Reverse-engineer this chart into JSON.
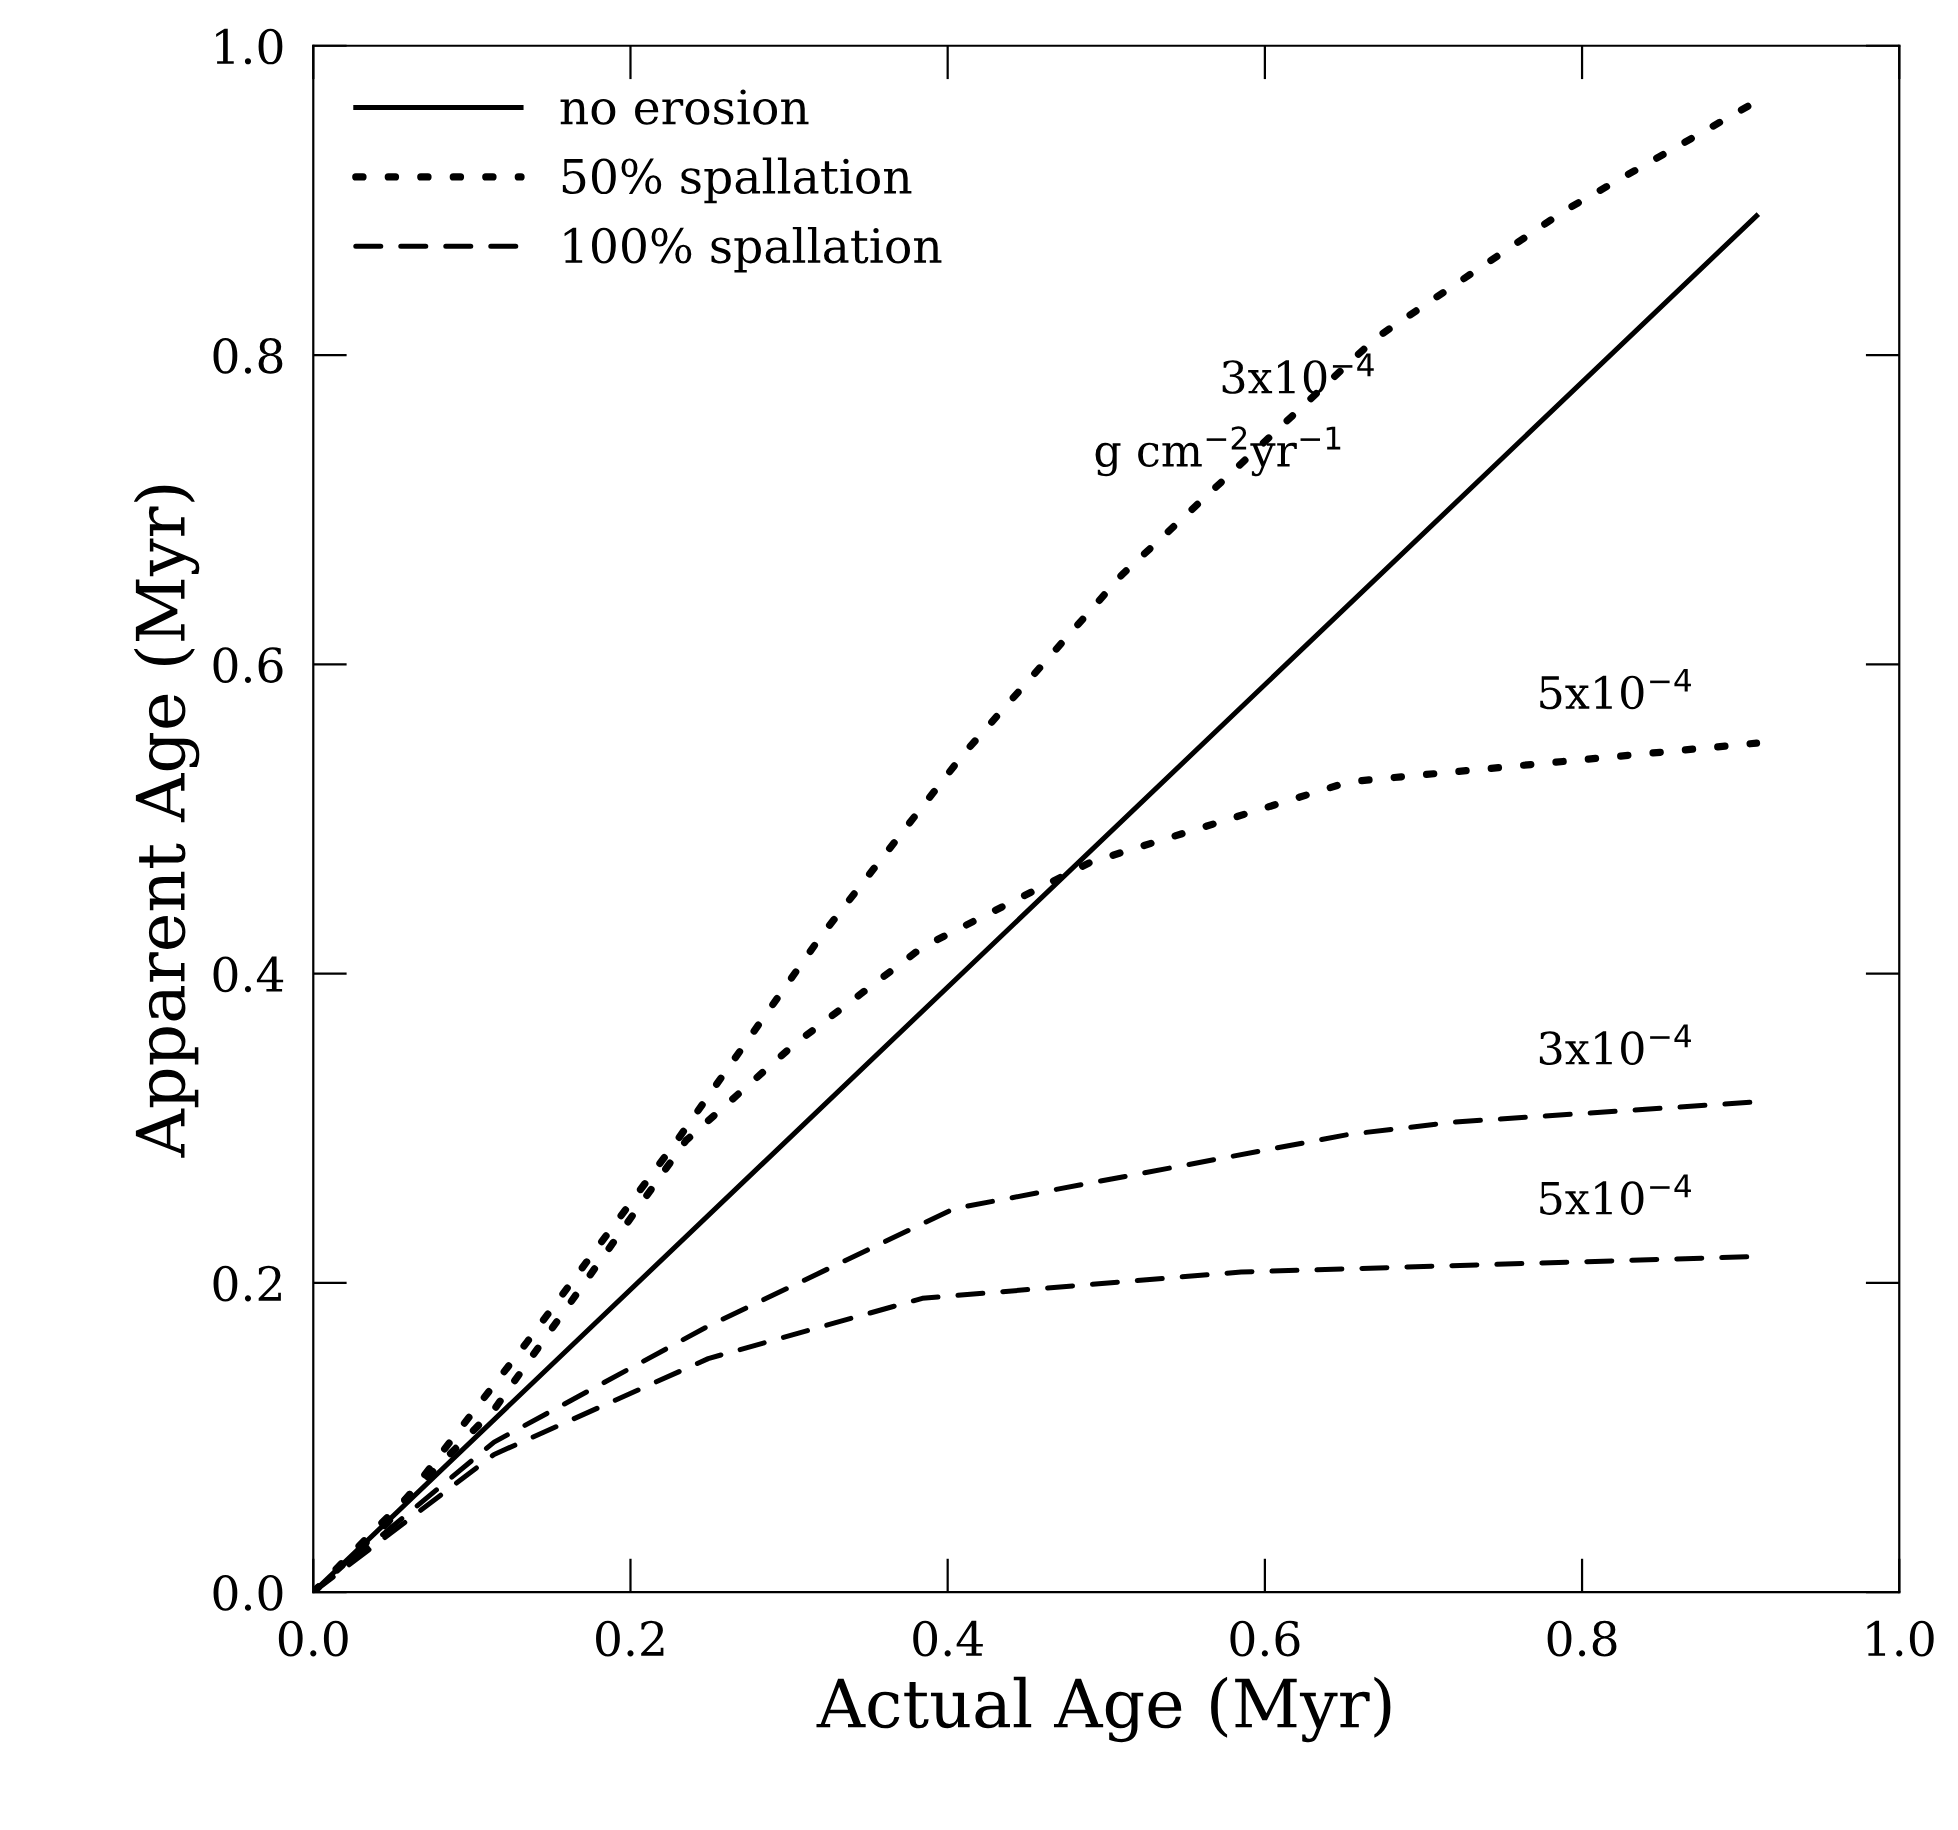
{
  "chart_data": {
    "type": "line",
    "xlabel": "Actual Age (Myr)",
    "ylabel": "Apparent Age (Myr)",
    "xlim": [
      0,
      1
    ],
    "ylim": [
      0,
      1
    ],
    "xticks": [
      {
        "value": 0,
        "label": "0.0"
      },
      {
        "value": 0.2,
        "label": "0.2"
      },
      {
        "value": 0.4,
        "label": "0.4"
      },
      {
        "value": 0.6,
        "label": "0.6"
      },
      {
        "value": 0.8,
        "label": "0.8"
      },
      {
        "value": 1,
        "label": "1.0"
      }
    ],
    "yticks": [
      {
        "value": 0,
        "label": "0.0"
      },
      {
        "value": 0.2,
        "label": "0.2"
      },
      {
        "value": 0.4,
        "label": "0.4"
      },
      {
        "value": 0.6,
        "label": "0.6"
      },
      {
        "value": 0.8,
        "label": "0.8"
      },
      {
        "value": 1,
        "label": "1.0"
      }
    ],
    "grid": false,
    "legend": "top left",
    "series": [
      {
        "name": "no erosion",
        "color": "#000000",
        "line_style": "solid",
        "x": [
          0,
          0.91
        ],
        "values": [
          0,
          0.89
        ]
      },
      {
        "name": "50% spallation",
        "color": "#000000",
        "line_style": "dotted",
        "x": [
          0,
          0.047,
          0.135,
          0.23,
          0.32,
          0.41,
          0.51,
          0.67,
          0.79,
          0.91
        ],
        "values": [
          0,
          0.045,
          0.162,
          0.293,
          0.424,
          0.542,
          0.658,
          0.811,
          0.894,
          0.964
        ]
      },
      {
        "color": "#000000",
        "line_style": "dotted",
        "x": [
          0,
          0.114,
          0.235,
          0.303,
          0.384,
          0.49,
          0.653,
          0.91
        ],
        "values": [
          0,
          0.118,
          0.292,
          0.354,
          0.417,
          0.472,
          0.524,
          0.549
        ]
      },
      {
        "name": "100% spallation",
        "color": "#000000",
        "line_style": "dashed",
        "x": [
          0,
          0.114,
          0.249,
          0.404,
          0.653,
          0.72,
          0.91
        ],
        "values": [
          0,
          0.097,
          0.172,
          0.248,
          0.296,
          0.304,
          0.317
        ]
      },
      {
        "color": "#000000",
        "line_style": "dashed",
        "x": [
          0,
          0.114,
          0.249,
          0.384,
          0.585,
          0.91
        ],
        "values": [
          0,
          0.089,
          0.151,
          0.19,
          0.207,
          0.217
        ]
      }
    ],
    "annotations": [
      {
        "text": "3x10$^{−4}$",
        "x": 0.6,
        "y": 0.744
      },
      {
        "text": "g cm$^{−2}$yr$^{−1}$",
        "x": 0.55,
        "y": 0.696
      },
      {
        "text": "5x10$^{−4}$",
        "x": 0.8,
        "y": 0.54
      },
      {
        "text": "3x10$^{−4}$",
        "x": 0.8,
        "y": 0.31
      },
      {
        "text": "5x10$^{−4}$",
        "x": 0.8,
        "y": 0.213
      }
    ]
  }
}
